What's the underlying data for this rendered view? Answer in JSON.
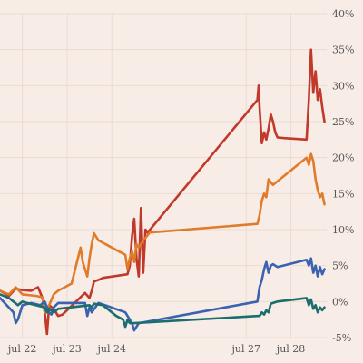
{
  "chart_data": {
    "type": "line",
    "title": "",
    "xlabel": "",
    "ylabel": "",
    "y_unit": "%",
    "x_tick_labels": [
      "jul 22",
      "jul 23",
      "jul 24",
      "jul 27",
      "jul 28"
    ],
    "x_tick_positions": [
      0.5,
      1.5,
      2.5,
      5.5,
      6.5
    ],
    "xlim": [
      0,
      7.3
    ],
    "ylim": [
      -5,
      40
    ],
    "y_ticks": [
      -5,
      0,
      5,
      10,
      15,
      20,
      25,
      30,
      35,
      40
    ],
    "y_tick_labels": [
      "-5%",
      "0%",
      "5%",
      "10%",
      "15%",
      "20%",
      "25%",
      "30%",
      "35%",
      "40%"
    ],
    "grid": true,
    "legend": "none",
    "series": [
      {
        "color": "#c0392b",
        "points": [
          [
            0.0,
            1.5
          ],
          [
            0.2,
            0.8
          ],
          [
            0.35,
            1.8
          ],
          [
            0.5,
            1.6
          ],
          [
            0.7,
            1.5
          ],
          [
            0.85,
            2.0
          ],
          [
            0.95,
            0.5
          ],
          [
            1.0,
            -1.5
          ],
          [
            1.05,
            -4.5
          ],
          [
            1.1,
            -0.5
          ],
          [
            1.2,
            -1.0
          ],
          [
            1.3,
            -2.0
          ],
          [
            1.4,
            -1.8
          ],
          [
            1.9,
            1.2
          ],
          [
            2.0,
            0.5
          ],
          [
            2.05,
            1.5
          ],
          [
            2.1,
            2.8
          ],
          [
            2.2,
            3.0
          ],
          [
            2.3,
            3.3
          ],
          [
            2.85,
            3.8
          ],
          [
            2.9,
            5.0
          ],
          [
            2.95,
            9.0
          ],
          [
            3.0,
            11.5
          ],
          [
            3.05,
            6.0
          ],
          [
            3.1,
            3.5
          ],
          [
            3.15,
            13.0
          ],
          [
            3.2,
            4.0
          ],
          [
            3.25,
            10.0
          ],
          [
            3.3,
            9.6
          ],
          [
            5.75,
            28.0
          ],
          [
            5.78,
            30.0
          ],
          [
            5.8,
            27.0
          ],
          [
            5.85,
            22.0
          ],
          [
            5.9,
            23.5
          ],
          [
            5.95,
            22.5
          ],
          [
            6.0,
            24.0
          ],
          [
            6.05,
            26.0
          ],
          [
            6.1,
            25.0
          ],
          [
            6.15,
            23.5
          ],
          [
            6.2,
            22.8
          ],
          [
            6.35,
            22.7
          ],
          [
            6.85,
            22.5
          ],
          [
            6.9,
            28.0
          ],
          [
            6.95,
            35.0
          ],
          [
            7.0,
            29.0
          ],
          [
            7.05,
            32.0
          ],
          [
            7.1,
            28.0
          ],
          [
            7.15,
            29.5
          ],
          [
            7.2,
            27.0
          ],
          [
            7.25,
            25.0
          ]
        ]
      },
      {
        "color": "#e07b2a",
        "points": [
          [
            0.0,
            1.5
          ],
          [
            0.2,
            1.0
          ],
          [
            0.35,
            2.0
          ],
          [
            0.5,
            1.0
          ],
          [
            0.8,
            0.8
          ],
          [
            0.95,
            0.6
          ],
          [
            1.0,
            -1.5
          ],
          [
            1.1,
            -0.5
          ],
          [
            1.2,
            1.0
          ],
          [
            1.3,
            1.5
          ],
          [
            1.6,
            2.5
          ],
          [
            1.8,
            7.5
          ],
          [
            1.85,
            5.5
          ],
          [
            1.9,
            4.5
          ],
          [
            1.95,
            3.5
          ],
          [
            2.0,
            6.0
          ],
          [
            2.05,
            8.0
          ],
          [
            2.1,
            9.5
          ],
          [
            2.2,
            8.5
          ],
          [
            2.8,
            6.5
          ],
          [
            2.85,
            4.5
          ],
          [
            2.9,
            6.0
          ],
          [
            2.95,
            7.0
          ],
          [
            3.0,
            5.5
          ],
          [
            3.05,
            8.0
          ],
          [
            3.1,
            7.5
          ],
          [
            3.2,
            8.5
          ],
          [
            3.35,
            9.6
          ],
          [
            5.75,
            10.8
          ],
          [
            5.8,
            12.0
          ],
          [
            5.85,
            14.0
          ],
          [
            5.9,
            15.0
          ],
          [
            5.95,
            14.5
          ],
          [
            6.0,
            17.0
          ],
          [
            6.1,
            16.2
          ],
          [
            6.85,
            20.0
          ],
          [
            6.9,
            19.0
          ],
          [
            6.95,
            20.5
          ],
          [
            7.0,
            19.5
          ],
          [
            7.05,
            17.0
          ],
          [
            7.1,
            15.5
          ],
          [
            7.15,
            14.5
          ],
          [
            7.2,
            15.0
          ],
          [
            7.25,
            13.5
          ]
        ]
      },
      {
        "color": "#3a62b0",
        "points": [
          [
            0.0,
            0.5
          ],
          [
            0.15,
            -0.5
          ],
          [
            0.3,
            -1.5
          ],
          [
            0.35,
            -3.0
          ],
          [
            0.4,
            -2.5
          ],
          [
            0.5,
            -0.5
          ],
          [
            0.7,
            -0.2
          ],
          [
            0.9,
            -0.5
          ],
          [
            1.0,
            0.0
          ],
          [
            1.1,
            -1.5
          ],
          [
            1.15,
            -1.8
          ],
          [
            1.2,
            -0.8
          ],
          [
            1.3,
            -0.2
          ],
          [
            1.9,
            -0.2
          ],
          [
            1.95,
            -2.0
          ],
          [
            2.0,
            -0.8
          ],
          [
            2.05,
            -1.5
          ],
          [
            2.2,
            -0.2
          ],
          [
            2.35,
            -0.5
          ],
          [
            2.8,
            -1.5
          ],
          [
            2.9,
            -2.5
          ],
          [
            2.95,
            -3.0
          ],
          [
            3.0,
            -4.0
          ],
          [
            3.05,
            -3.5
          ],
          [
            3.1,
            -3.0
          ],
          [
            5.75,
            0.0
          ],
          [
            5.8,
            2.0
          ],
          [
            5.85,
            3.0
          ],
          [
            5.9,
            4.5
          ],
          [
            5.95,
            5.5
          ],
          [
            6.0,
            4.0
          ],
          [
            6.05,
            5.0
          ],
          [
            6.1,
            5.2
          ],
          [
            6.2,
            4.8
          ],
          [
            6.85,
            5.8
          ],
          [
            6.9,
            5.0
          ],
          [
            6.95,
            6.0
          ],
          [
            7.0,
            4.0
          ],
          [
            7.05,
            5.0
          ],
          [
            7.1,
            3.5
          ],
          [
            7.15,
            4.8
          ],
          [
            7.2,
            3.8
          ],
          [
            7.25,
            4.5
          ]
        ]
      },
      {
        "color": "#1a6e6e",
        "points": [
          [
            0.0,
            1.0
          ],
          [
            0.2,
            0.5
          ],
          [
            0.3,
            0.0
          ],
          [
            0.4,
            -0.5
          ],
          [
            0.5,
            0.0
          ],
          [
            0.6,
            -0.2
          ],
          [
            1.0,
            -0.8
          ],
          [
            1.05,
            -1.5
          ],
          [
            1.1,
            -1.0
          ],
          [
            1.2,
            -1.5
          ],
          [
            1.3,
            -1.0
          ],
          [
            2.0,
            -0.5
          ],
          [
            2.05,
            -0.8
          ],
          [
            2.1,
            -0.3
          ],
          [
            2.3,
            -0.5
          ],
          [
            2.6,
            -2.0
          ],
          [
            2.75,
            -2.5
          ],
          [
            2.8,
            -3.5
          ],
          [
            2.85,
            -2.5
          ],
          [
            2.9,
            -3.0
          ],
          [
            3.0,
            -3.0
          ],
          [
            5.75,
            -2.0
          ],
          [
            5.8,
            -2.0
          ],
          [
            5.85,
            -1.5
          ],
          [
            5.9,
            -1.8
          ],
          [
            5.95,
            -1.2
          ],
          [
            6.0,
            -1.5
          ],
          [
            6.05,
            -0.3
          ],
          [
            6.1,
            -0.2
          ],
          [
            6.2,
            0.0
          ],
          [
            6.85,
            0.5
          ],
          [
            6.9,
            -0.5
          ],
          [
            6.95,
            0.3
          ],
          [
            7.0,
            -1.0
          ],
          [
            7.05,
            -0.5
          ],
          [
            7.1,
            -1.5
          ],
          [
            7.15,
            -0.8
          ],
          [
            7.2,
            -1.2
          ],
          [
            7.25,
            -0.8
          ]
        ]
      }
    ]
  }
}
